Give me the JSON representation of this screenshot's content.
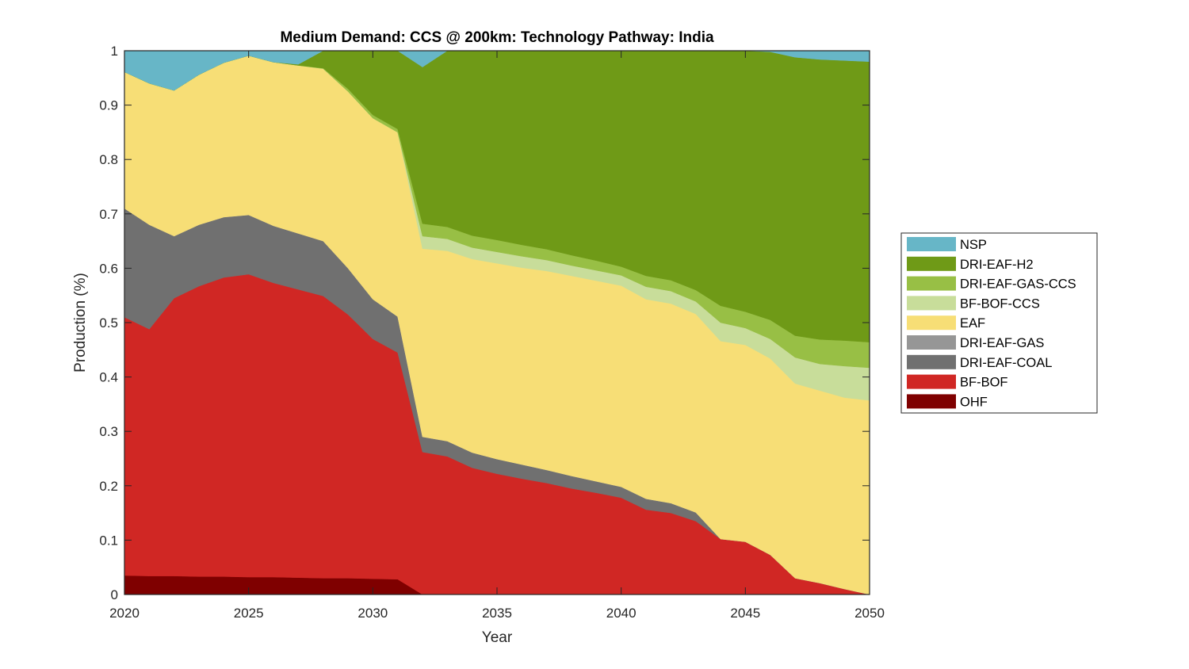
{
  "chart_data": {
    "type": "area",
    "stacked": true,
    "title": "Medium Demand: CCS @ 200km: Technology Pathway: India",
    "xlabel": "Year",
    "ylabel": "Production (%)",
    "xlim": [
      2020,
      2050
    ],
    "ylim": [
      0,
      1
    ],
    "x_ticks": [
      "2020",
      "2025",
      "2030",
      "2035",
      "2040",
      "2045",
      "2050"
    ],
    "y_ticks": [
      "0",
      "0.1",
      "0.2",
      "0.3",
      "0.4",
      "0.5",
      "0.6",
      "0.7",
      "0.8",
      "0.9",
      "1"
    ],
    "grid": false,
    "legend_position": "outside-right",
    "x": [
      2020,
      2021,
      2022,
      2023,
      2024,
      2025,
      2026,
      2027,
      2028,
      2029,
      2030,
      2031,
      2032,
      2033,
      2034,
      2035,
      2036,
      2037,
      2038,
      2039,
      2040,
      2041,
      2042,
      2043,
      2044,
      2045,
      2046,
      2047,
      2048,
      2049,
      2050
    ],
    "series": [
      {
        "name": "OHF",
        "color": "#7f0000",
        "values": [
          0.035,
          0.034,
          0.034,
          0.033,
          0.033,
          0.032,
          0.032,
          0.031,
          0.03,
          0.03,
          0.029,
          0.028,
          0,
          0,
          0,
          0,
          0,
          0,
          0,
          0,
          0,
          0,
          0,
          0,
          0,
          0,
          0,
          0,
          0,
          0,
          0
        ]
      },
      {
        "name": "BF-BOF",
        "color": "#d02724",
        "values": [
          0.475,
          0.454,
          0.511,
          0.534,
          0.55,
          0.557,
          0.541,
          0.53,
          0.519,
          0.485,
          0.441,
          0.417,
          0.262,
          0.254,
          0.233,
          0.222,
          0.213,
          0.205,
          0.195,
          0.187,
          0.178,
          0.156,
          0.15,
          0.135,
          0.102,
          0.097,
          0.073,
          0.03,
          0.021,
          0.01,
          0
        ]
      },
      {
        "name": "DRI-EAF-COAL",
        "color": "#707070",
        "values": [
          0.2,
          0.192,
          0.114,
          0.113,
          0.111,
          0.109,
          0.105,
          0.103,
          0.101,
          0.085,
          0.073,
          0.066,
          0.028,
          0.028,
          0.028,
          0.027,
          0.026,
          0.024,
          0.023,
          0.021,
          0.02,
          0.02,
          0.018,
          0.016,
          0,
          0,
          0,
          0,
          0,
          0,
          0
        ]
      },
      {
        "name": "DRI-EAF-GAS",
        "color": "#969696",
        "values": [
          0,
          0,
          0,
          0,
          0,
          0,
          0,
          0,
          0,
          0,
          0,
          0,
          0,
          0,
          0,
          0,
          0,
          0,
          0,
          0,
          0,
          0,
          0,
          0,
          0,
          0,
          0,
          0,
          0,
          0,
          0
        ]
      },
      {
        "name": "EAF",
        "color": "#f7de76",
        "values": [
          0.251,
          0.26,
          0.268,
          0.276,
          0.284,
          0.293,
          0.301,
          0.309,
          0.317,
          0.325,
          0.333,
          0.339,
          0.346,
          0.35,
          0.356,
          0.36,
          0.362,
          0.366,
          0.368,
          0.369,
          0.37,
          0.367,
          0.367,
          0.365,
          0.364,
          0.362,
          0.361,
          0.358,
          0.354,
          0.352,
          0.357
        ]
      },
      {
        "name": "BF-BOF-CCS",
        "color": "#c8dd9a",
        "values": [
          0,
          0,
          0,
          0,
          0,
          0,
          0,
          0,
          0,
          0,
          0,
          0,
          0.023,
          0.022,
          0.021,
          0.021,
          0.021,
          0.02,
          0.019,
          0.019,
          0.019,
          0.023,
          0.023,
          0.023,
          0.034,
          0.031,
          0.036,
          0.048,
          0.049,
          0.058,
          0.06
        ]
      },
      {
        "name": "DRI-EAF-GAS-CCS",
        "color": "#98bf45",
        "values": [
          0,
          0,
          0,
          0,
          0,
          0,
          0,
          0,
          0.001,
          0.005,
          0.006,
          0.006,
          0.023,
          0.022,
          0.022,
          0.022,
          0.021,
          0.02,
          0.019,
          0.018,
          0.016,
          0.02,
          0.02,
          0.021,
          0.031,
          0.03,
          0.035,
          0.04,
          0.045,
          0.047,
          0.047
        ]
      },
      {
        "name": "DRI-EAF-H2",
        "color": "#6f9a17",
        "values": [
          0,
          0,
          0,
          0,
          0,
          0,
          0,
          0.002,
          0.032,
          0.07,
          0.118,
          0.144,
          0.288,
          0.324,
          0.34,
          0.348,
          0.357,
          0.365,
          0.376,
          0.386,
          0.397,
          0.414,
          0.422,
          0.44,
          0.469,
          0.48,
          0.493,
          0.512,
          0.515,
          0.515,
          0.516
        ]
      },
      {
        "name": "NSP",
        "color": "#67b6c7",
        "values": [
          0.039,
          0.06,
          0.073,
          0.044,
          0.022,
          0.009,
          0.021,
          0.025,
          0,
          0,
          0,
          0,
          0.03,
          0,
          0,
          0,
          0,
          0,
          0,
          0,
          0,
          0,
          0,
          0,
          0,
          0,
          0.002,
          0.012,
          0.016,
          0.018,
          0.02
        ]
      }
    ],
    "legend_order": [
      "NSP",
      "DRI-EAF-H2",
      "DRI-EAF-GAS-CCS",
      "BF-BOF-CCS",
      "EAF",
      "DRI-EAF-GAS",
      "DRI-EAF-COAL",
      "BF-BOF",
      "OHF"
    ]
  }
}
